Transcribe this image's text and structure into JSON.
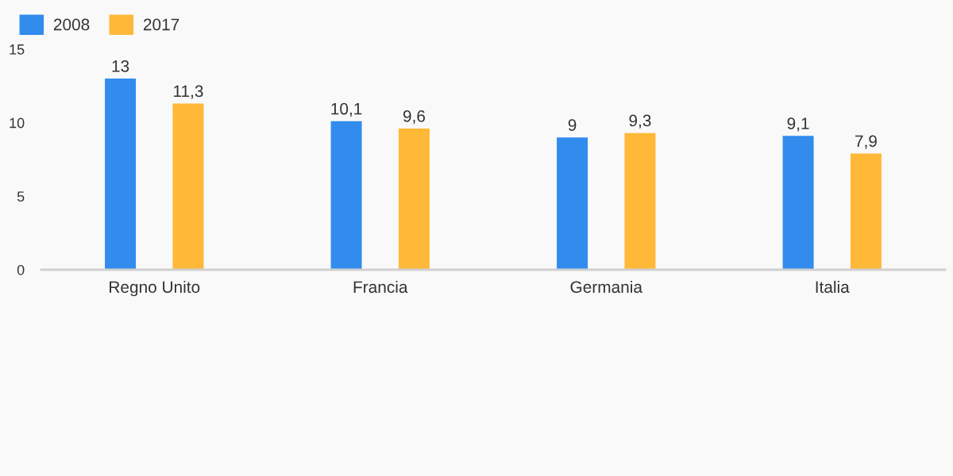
{
  "chart_data": {
    "type": "bar",
    "categories": [
      "Regno Unito",
      "Francia",
      "Germania",
      "Italia"
    ],
    "series": [
      {
        "name": "2008",
        "color": "#318ced",
        "values": [
          13,
          10.1,
          9,
          9.1
        ],
        "value_labels": [
          "13",
          "10,1",
          "9",
          "9,1"
        ]
      },
      {
        "name": "2017",
        "color": "#ffb838",
        "values": [
          11.3,
          9.6,
          9.3,
          7.9
        ],
        "value_labels": [
          "11,3",
          "9,6",
          "9,3",
          "7,9"
        ]
      }
    ],
    "ylim": [
      0,
      15
    ],
    "yticks": [
      0,
      5,
      10,
      15
    ],
    "grid": false,
    "legend": "top left"
  }
}
